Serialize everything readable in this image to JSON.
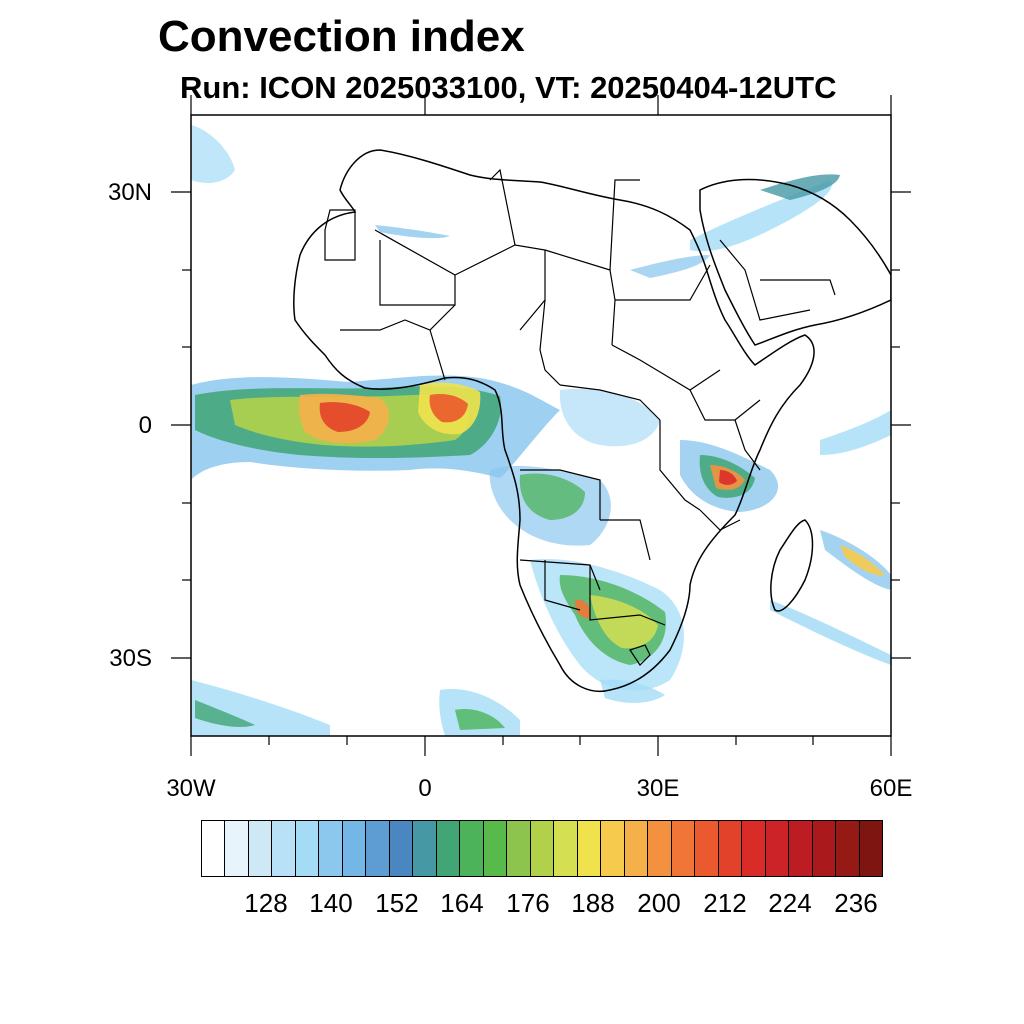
{
  "title": "Convection index",
  "subtitle": {
    "run": "Run: ICON 2025033100,",
    "vt": "VT: 20250404-12UTC"
  },
  "axes": {
    "lat_labels": [
      "30N",
      "0",
      "30S"
    ],
    "lon_labels": [
      "30W",
      "0",
      "30E",
      "60E"
    ]
  },
  "colorbar": {
    "colors": [
      "#ffffff",
      "#e8f4fb",
      "#cfe8f6",
      "#b8e0f7",
      "#a4dcf6",
      "#8cc8ee",
      "#74b6e6",
      "#5d9dd4",
      "#4a86c0",
      "#4699a4",
      "#41a576",
      "#4cb35a",
      "#58ba4a",
      "#8cc44e",
      "#b1d14a",
      "#d4df52",
      "#f0e24d",
      "#f6ca4d",
      "#f6b04a",
      "#f4913e",
      "#f07536",
      "#ea5a2e",
      "#e24229",
      "#d92c29",
      "#cb2327",
      "#bc1d23",
      "#aa1a1d",
      "#951915",
      "#7e1510"
    ],
    "tick_labels": [
      "128",
      "140",
      "152",
      "164",
      "176",
      "188",
      "200",
      "212",
      "224",
      "236"
    ]
  }
}
